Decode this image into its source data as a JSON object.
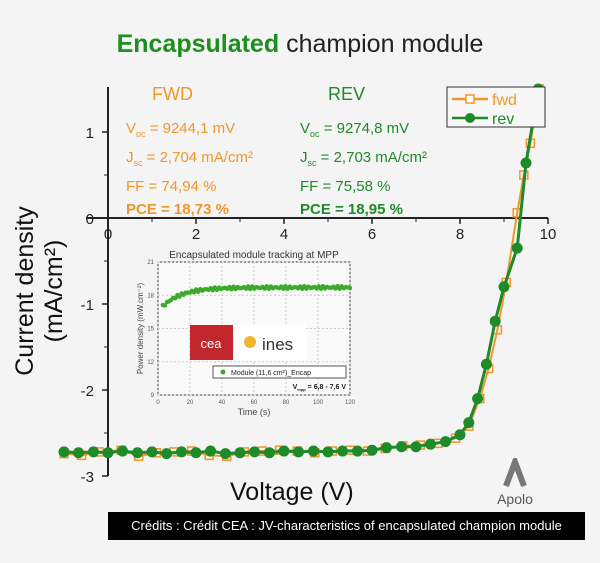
{
  "title": {
    "highlight": "Encapsulated",
    "rest": " champion module"
  },
  "fwd": {
    "header": "FWD",
    "voc": "V",
    "voc_sub": "oc",
    "voc_val": " = 9244,1 mV",
    "jsc": "J",
    "jsc_sub": "sc",
    "jsc_val": " = 2,704 mA/cm²",
    "ff": "FF = 74,94 %",
    "pce": "PCE = 18,73 %"
  },
  "rev": {
    "header": "REV",
    "voc": "V",
    "voc_sub": "oc",
    "voc_val": " = 9274,8 mV",
    "jsc": "J",
    "jsc_sub": "sc",
    "jsc_val": " = 2,703 mA/cm²",
    "ff": "FF = 75,58 %",
    "pce": "PCE = 18,95 %"
  },
  "caption": "Crédits : Crédit CEA : JV-characteristics of encapsulated champion module",
  "apolo": "Apolo",
  "colors": {
    "fwd": "#f0962a",
    "rev": "#1e8a2a"
  },
  "chart_data": [
    {
      "type": "line",
      "title": "Encapsulated champion module",
      "xlabel": "Voltage (V)",
      "ylabel": "Current density (mA/cm²)",
      "xlim": [
        -1,
        10
      ],
      "ylim": [
        -3.1,
        1.5
      ],
      "xticks": [
        "0",
        "2",
        "4",
        "6",
        "8",
        "10"
      ],
      "xtick_values": [
        0,
        2,
        4,
        6,
        8,
        10
      ],
      "yticks": [
        "-3",
        "-2",
        "-1",
        "0",
        "1"
      ],
      "ytick_values": [
        -3,
        -2,
        -1,
        0,
        1
      ],
      "legend": [
        "fwd",
        "rev"
      ],
      "legend_position": "top-right",
      "series": [
        {
          "name": "fwd",
          "marker": "square-open",
          "points": [
            [
              -1,
              -2.74
            ],
            [
              -0.6,
              -2.76
            ],
            [
              -0.2,
              -2.72
            ],
            [
              0.3,
              -2.7
            ],
            [
              0.7,
              -2.77
            ],
            [
              1.1,
              -2.73
            ],
            [
              1.5,
              -2.72
            ],
            [
              1.9,
              -2.71
            ],
            [
              2.3,
              -2.76
            ],
            [
              2.7,
              -2.77
            ],
            [
              3.1,
              -2.72
            ],
            [
              3.5,
              -2.71
            ],
            [
              3.9,
              -2.7
            ],
            [
              4.3,
              -2.71
            ],
            [
              4.7,
              -2.73
            ],
            [
              5.1,
              -2.71
            ],
            [
              5.5,
              -2.7
            ],
            [
              5.9,
              -2.71
            ],
            [
              6.3,
              -2.68
            ],
            [
              6.7,
              -2.65
            ],
            [
              7.1,
              -2.64
            ],
            [
              7.5,
              -2.62
            ],
            [
              7.9,
              -2.56
            ],
            [
              8.2,
              -2.42
            ],
            [
              8.45,
              -2.1
            ],
            [
              8.65,
              -1.75
            ],
            [
              8.85,
              -1.3
            ],
            [
              9.05,
              -0.75
            ],
            [
              9.3,
              0.06
            ],
            [
              9.45,
              0.5
            ],
            [
              9.6,
              0.87
            ],
            [
              9.8,
              1.5
            ]
          ]
        },
        {
          "name": "rev",
          "marker": "circle-filled",
          "points": [
            [
              -1,
              -2.72
            ],
            [
              -0.67,
              -2.73
            ],
            [
              -0.33,
              -2.72
            ],
            [
              0,
              -2.73
            ],
            [
              0.33,
              -2.71
            ],
            [
              0.67,
              -2.73
            ],
            [
              1,
              -2.72
            ],
            [
              1.33,
              -2.74
            ],
            [
              1.67,
              -2.72
            ],
            [
              2,
              -2.73
            ],
            [
              2.33,
              -2.71
            ],
            [
              2.67,
              -2.74
            ],
            [
              3,
              -2.73
            ],
            [
              3.33,
              -2.72
            ],
            [
              3.67,
              -2.73
            ],
            [
              4,
              -2.71
            ],
            [
              4.33,
              -2.72
            ],
            [
              4.67,
              -2.71
            ],
            [
              5,
              -2.72
            ],
            [
              5.33,
              -2.71
            ],
            [
              5.67,
              -2.71
            ],
            [
              6,
              -2.7
            ],
            [
              6.33,
              -2.67
            ],
            [
              6.67,
              -2.66
            ],
            [
              7,
              -2.66
            ],
            [
              7.33,
              -2.63
            ],
            [
              7.67,
              -2.6
            ],
            [
              8,
              -2.52
            ],
            [
              8.2,
              -2.38
            ],
            [
              8.4,
              -2.1
            ],
            [
              8.6,
              -1.7
            ],
            [
              8.8,
              -1.2
            ],
            [
              9.0,
              -0.8
            ],
            [
              9.3,
              -0.35
            ],
            [
              9.5,
              0.64
            ],
            [
              9.78,
              1.5
            ]
          ]
        }
      ]
    },
    {
      "type": "scatter",
      "title": "Encapsulated module tracking at MPP",
      "xlabel": "Time (s)",
      "ylabel": "Power density (mW.cm⁻²)",
      "xlim": [
        0,
        120
      ],
      "ylim": [
        9,
        21
      ],
      "xticks": [
        "0",
        "20",
        "40",
        "60",
        "80",
        "100",
        "120"
      ],
      "xtick_values": [
        0,
        20,
        40,
        60,
        80,
        100,
        120
      ],
      "yticks": [
        "9",
        "12",
        "15",
        "18",
        "21"
      ],
      "ytick_values": [
        9,
        12,
        15,
        18,
        21
      ],
      "legend": [
        "Module (11,6 cm²)_Encap"
      ],
      "annotation": "V",
      "annotation_sub": "mpp",
      "annotation_rest": " = 6,8 - 7,6 V",
      "logos": [
        "cea",
        "ines"
      ],
      "series": [
        {
          "name": "Module (11,6 cm²)_Encap",
          "x_start": 3,
          "x_end": 120,
          "y_start": 17.0,
          "y_plateau": 18.7,
          "rise_time": 12
        }
      ]
    }
  ]
}
